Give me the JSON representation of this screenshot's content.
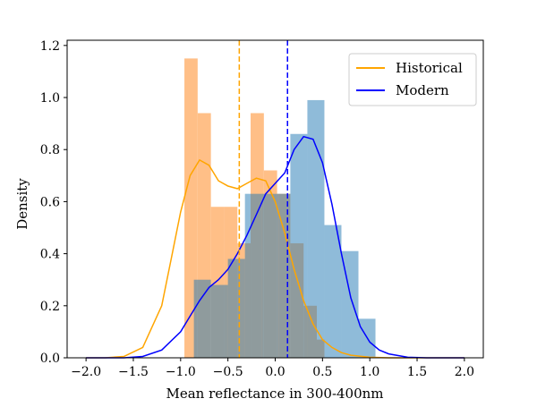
{
  "chart_data": {
    "type": "histogram+kde",
    "xlabel": "Mean reflectance in 300-400nm",
    "ylabel": "Density",
    "xlim": [
      -2.2,
      2.2
    ],
    "ylim": [
      0,
      1.22
    ],
    "xticks": [
      -2.0,
      -1.5,
      -1.0,
      -0.5,
      0.0,
      0.5,
      1.0,
      1.5,
      2.0
    ],
    "xtick_labels": [
      "−2.0",
      "−1.5",
      "−1.0",
      "−0.5",
      "0.0",
      "0.5",
      "1.0",
      "1.5",
      "2.0"
    ],
    "yticks": [
      0.0,
      0.2,
      0.4,
      0.6,
      0.8,
      1.0,
      1.2
    ],
    "ytick_labels": [
      "0.0",
      "0.2",
      "0.4",
      "0.6",
      "0.8",
      "1.0",
      "1.2"
    ],
    "grid": false,
    "legend_position": "top-right",
    "series": [
      {
        "name": "Historical",
        "color": "#ffa500",
        "bar_color": "#ffbf87",
        "hist_edges": [
          -0.96,
          -0.82,
          -0.68,
          -0.54,
          -0.4,
          -0.26,
          -0.12,
          0.02,
          0.16,
          0.3,
          0.44,
          0.52
        ],
        "hist_values": [
          1.15,
          0.94,
          0.58,
          0.58,
          0.44,
          0.94,
          0.72,
          0.63,
          0.44,
          0.2,
          0.07
        ],
        "kde_x": [
          -2.0,
          -1.8,
          -1.6,
          -1.4,
          -1.2,
          -1.1,
          -1.0,
          -0.9,
          -0.8,
          -0.7,
          -0.6,
          -0.5,
          -0.4,
          -0.3,
          -0.2,
          -0.1,
          0.0,
          0.1,
          0.2,
          0.3,
          0.4,
          0.5,
          0.6,
          0.7,
          0.8,
          1.0,
          1.2,
          1.4,
          1.6,
          1.8,
          2.0
        ],
        "kde_y": [
          0.0,
          0.0,
          0.005,
          0.04,
          0.2,
          0.38,
          0.56,
          0.7,
          0.76,
          0.74,
          0.68,
          0.66,
          0.65,
          0.67,
          0.69,
          0.68,
          0.6,
          0.48,
          0.34,
          0.22,
          0.13,
          0.07,
          0.04,
          0.02,
          0.01,
          0.002,
          0.0,
          0.0,
          0.0,
          0.0,
          0.0
        ],
        "mean": -0.38
      },
      {
        "name": "Modern",
        "color": "#0000ff",
        "bar_color": "#1f77b4",
        "hist_edges": [
          -0.86,
          -0.68,
          -0.5,
          -0.32,
          -0.14,
          0.04,
          0.16,
          0.34,
          0.52,
          0.7,
          0.88,
          1.06
        ],
        "hist_values": [
          0.3,
          0.28,
          0.38,
          0.63,
          0.63,
          0.63,
          0.86,
          0.99,
          0.51,
          0.41,
          0.15
        ],
        "kde_x": [
          -2.0,
          -1.6,
          -1.4,
          -1.2,
          -1.0,
          -0.9,
          -0.8,
          -0.7,
          -0.6,
          -0.5,
          -0.4,
          -0.3,
          -0.2,
          -0.1,
          0.0,
          0.1,
          0.2,
          0.3,
          0.4,
          0.5,
          0.6,
          0.7,
          0.8,
          0.9,
          1.0,
          1.1,
          1.2,
          1.4,
          1.6,
          1.8,
          2.0
        ],
        "kde_y": [
          0.0,
          0.0,
          0.005,
          0.03,
          0.1,
          0.16,
          0.22,
          0.27,
          0.3,
          0.34,
          0.4,
          0.47,
          0.55,
          0.63,
          0.67,
          0.71,
          0.8,
          0.85,
          0.84,
          0.75,
          0.59,
          0.4,
          0.23,
          0.12,
          0.06,
          0.03,
          0.015,
          0.002,
          0.0,
          0.0,
          0.0
        ],
        "mean": 0.13
      }
    ]
  }
}
